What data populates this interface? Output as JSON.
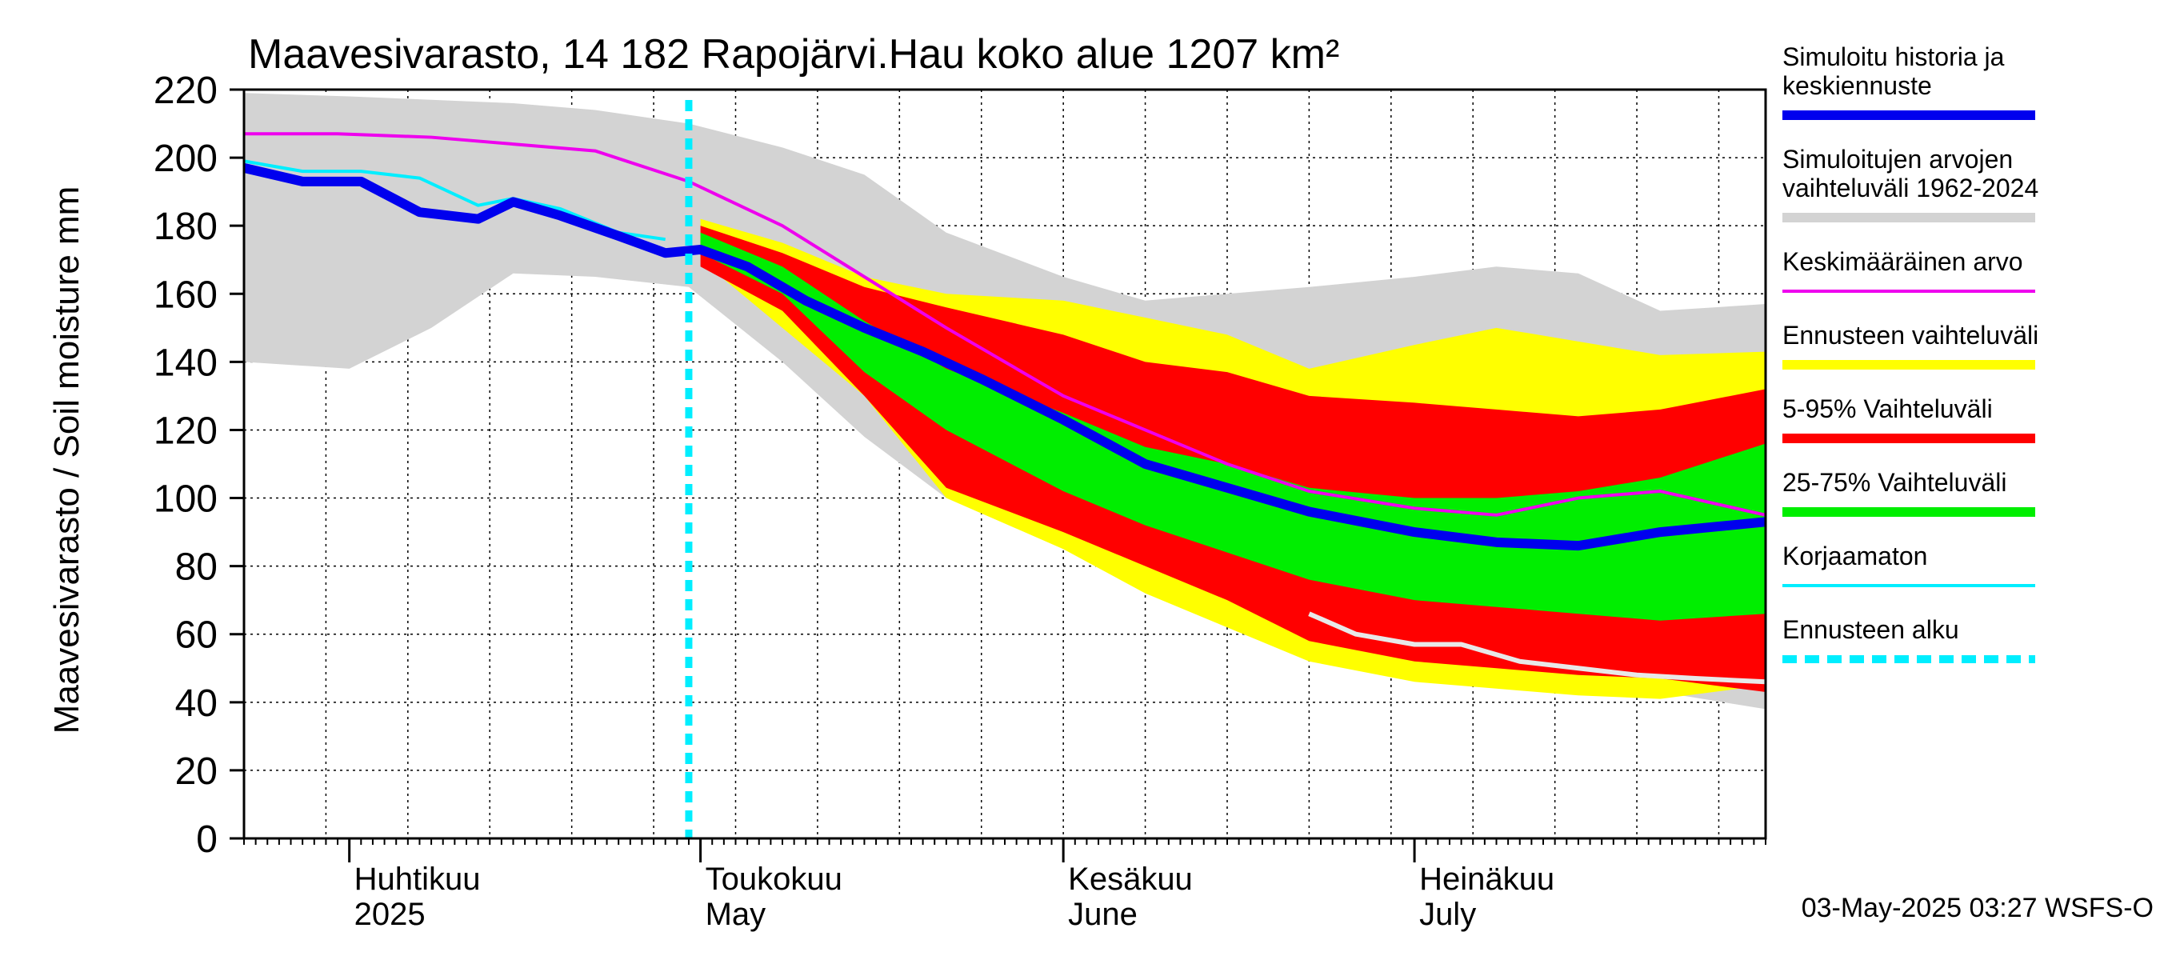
{
  "chart_data": {
    "type": "area",
    "title": "Maavesivarasto, 14 182 Rapojärvi.Hau koko alue 1207 km²",
    "ylabel": "Maavesivarasto / Soil moisture   mm",
    "ylim": [
      0,
      220
    ],
    "yticks": [
      "0",
      "20",
      "40",
      "60",
      "80",
      "100",
      "120",
      "140",
      "160",
      "180",
      "200",
      "220"
    ],
    "xlim": [
      "2025-03-23",
      "2025-07-31"
    ],
    "month_labels": [
      {
        "line1": "Huhtikuu",
        "line2": "2025",
        "date": "2025-04-01"
      },
      {
        "line1": "Toukokuu",
        "line2": "May",
        "date": "2025-05-01"
      },
      {
        "line1": "Kesäkuu",
        "line2": "June",
        "date": "2025-06-01"
      },
      {
        "line1": "Heinäkuu",
        "line2": "July",
        "date": "2025-07-01"
      }
    ],
    "forecast_start": "2025-04-30",
    "grid": true,
    "legend_position": "right",
    "colors": {
      "history_range": "#d3d3d3",
      "forecast_range": "#ffff00",
      "p5_95": "#ff0000",
      "p25_75": "#00ee00",
      "simulated": "#0000ee",
      "mean": "#ee00ee",
      "uncorrected": "#00eeff",
      "forecast_start": "#00eeff",
      "lower_trace": "#e8e8e8"
    },
    "legend": [
      {
        "label": "Simuloitu historia ja keskiennuste",
        "key": "simulated"
      },
      {
        "label": "Simuloitujen arvojen vaihteluväli 1962-2024",
        "key": "history_range"
      },
      {
        "label": "Keskimääräinen arvo",
        "key": "mean"
      },
      {
        "label": "Ennusteen vaihteluväli",
        "key": "forecast_range"
      },
      {
        "label": "5-95% Vaihteluväli",
        "key": "p5_95"
      },
      {
        "label": "25-75% Vaihteluväli",
        "key": "p25_75"
      },
      {
        "label": "Korjaamaton",
        "key": "uncorrected"
      },
      {
        "label": "Ennusteen alku",
        "key": "forecast_start"
      }
    ],
    "series": {
      "history_range": {
        "x": [
          "2025-03-23",
          "2025-04-01",
          "2025-04-08",
          "2025-04-15",
          "2025-04-22",
          "2025-04-30",
          "2025-05-08",
          "2025-05-15",
          "2025-05-22",
          "2025-06-01",
          "2025-06-08",
          "2025-06-15",
          "2025-06-22",
          "2025-07-01",
          "2025-07-08",
          "2025-07-15",
          "2025-07-22",
          "2025-07-31"
        ],
        "upper": [
          219,
          218,
          217,
          216,
          214,
          210,
          203,
          195,
          178,
          165,
          158,
          160,
          162,
          165,
          168,
          166,
          155,
          157
        ],
        "lower": [
          140,
          138,
          150,
          166,
          165,
          162,
          140,
          118,
          100,
          88,
          80,
          68,
          62,
          55,
          50,
          46,
          43,
          38
        ]
      },
      "forecast_range": {
        "x": [
          "2025-05-01",
          "2025-05-08",
          "2025-05-15",
          "2025-05-22",
          "2025-06-01",
          "2025-06-08",
          "2025-06-15",
          "2025-06-22",
          "2025-07-01",
          "2025-07-08",
          "2025-07-15",
          "2025-07-22",
          "2025-07-31"
        ],
        "upper": [
          182,
          175,
          165,
          160,
          158,
          153,
          148,
          138,
          145,
          150,
          146,
          142,
          143
        ],
        "lower": [
          170,
          150,
          130,
          100,
          85,
          72,
          62,
          52,
          46,
          44,
          42,
          41,
          45
        ]
      },
      "p5_95": {
        "x": [
          "2025-05-01",
          "2025-05-08",
          "2025-05-15",
          "2025-05-22",
          "2025-06-01",
          "2025-06-08",
          "2025-06-15",
          "2025-06-22",
          "2025-07-01",
          "2025-07-08",
          "2025-07-15",
          "2025-07-22",
          "2025-07-31"
        ],
        "upper": [
          180,
          172,
          162,
          156,
          148,
          140,
          137,
          130,
          128,
          126,
          124,
          126,
          132
        ],
        "lower": [
          168,
          155,
          130,
          103,
          90,
          80,
          70,
          58,
          52,
          50,
          48,
          47,
          43
        ]
      },
      "p25_75": {
        "x": [
          "2025-05-01",
          "2025-05-08",
          "2025-05-15",
          "2025-05-22",
          "2025-06-01",
          "2025-06-08",
          "2025-06-15",
          "2025-06-22",
          "2025-07-01",
          "2025-07-08",
          "2025-07-15",
          "2025-07-22",
          "2025-07-31"
        ],
        "upper": [
          178,
          168,
          152,
          138,
          125,
          115,
          110,
          103,
          100,
          100,
          102,
          106,
          116
        ],
        "lower": [
          172,
          160,
          137,
          120,
          102,
          92,
          84,
          76,
          70,
          68,
          66,
          64,
          66
        ]
      },
      "simulated": {
        "x": [
          "2025-03-23",
          "2025-03-28",
          "2025-04-02",
          "2025-04-07",
          "2025-04-12",
          "2025-04-15",
          "2025-04-19",
          "2025-04-24",
          "2025-04-28",
          "2025-05-01",
          "2025-05-05",
          "2025-05-10",
          "2025-05-15",
          "2025-05-20",
          "2025-05-25",
          "2025-06-01",
          "2025-06-08",
          "2025-06-15",
          "2025-06-22",
          "2025-07-01",
          "2025-07-08",
          "2025-07-15",
          "2025-07-22",
          "2025-07-31"
        ],
        "y": [
          197,
          193,
          193,
          184,
          182,
          187,
          183,
          177,
          172,
          173,
          168,
          158,
          150,
          143,
          135,
          123,
          110,
          103,
          96,
          90,
          87,
          86,
          90,
          93
        ]
      },
      "mean": {
        "x": [
          "2025-03-23",
          "2025-03-31",
          "2025-04-08",
          "2025-04-15",
          "2025-04-22",
          "2025-04-30",
          "2025-05-08",
          "2025-05-15",
          "2025-05-22",
          "2025-06-01",
          "2025-06-08",
          "2025-06-15",
          "2025-06-22",
          "2025-07-01",
          "2025-07-08",
          "2025-07-15",
          "2025-07-22",
          "2025-07-31"
        ],
        "y": [
          207,
          207,
          206,
          204,
          202,
          193,
          180,
          165,
          150,
          130,
          120,
          110,
          102,
          97,
          95,
          100,
          102,
          95
        ]
      },
      "uncorrected": {
        "x": [
          "2025-03-23",
          "2025-03-28",
          "2025-04-02",
          "2025-04-07",
          "2025-04-12",
          "2025-04-15",
          "2025-04-19",
          "2025-04-24",
          "2025-04-28"
        ],
        "y": [
          199,
          196,
          196,
          194,
          186,
          188,
          185,
          178,
          176
        ]
      },
      "lower_trace": {
        "x": [
          "2025-06-22",
          "2025-06-26",
          "2025-07-01",
          "2025-07-05",
          "2025-07-10",
          "2025-07-15",
          "2025-07-20",
          "2025-07-25",
          "2025-07-31"
        ],
        "y": [
          66,
          60,
          57,
          57,
          52,
          50,
          48,
          47,
          46
        ]
      }
    },
    "footer": "03-May-2025 03:27 WSFS-O"
  }
}
